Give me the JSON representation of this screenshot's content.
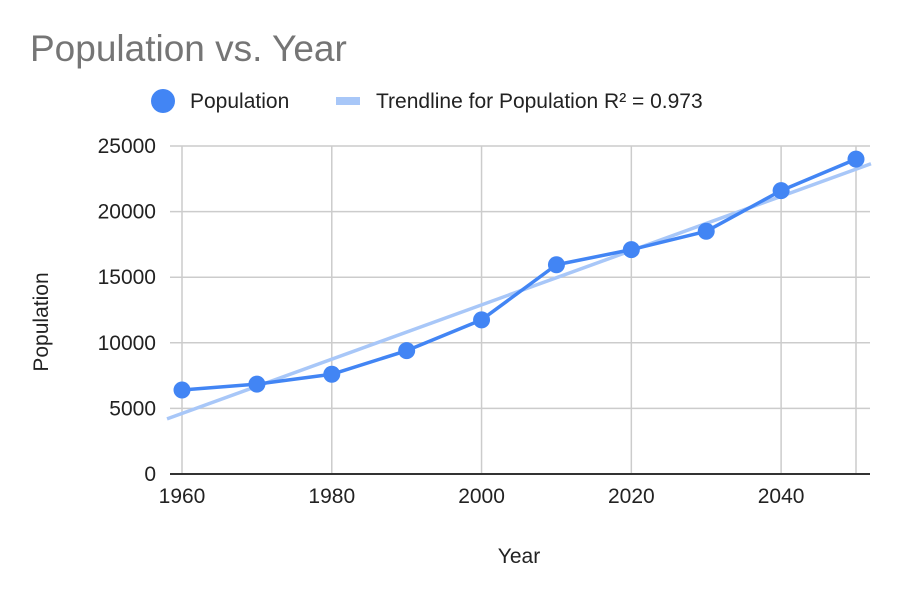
{
  "chart_data": {
    "type": "line",
    "title": "Population vs. Year",
    "xlabel": "Year",
    "ylabel": "Population",
    "xlim": [
      1960,
      2052
    ],
    "ylim": [
      0,
      25000
    ],
    "x_ticks": [
      1960,
      1980,
      2000,
      2020,
      2040
    ],
    "x_gridlines": [
      1960,
      1980,
      2000,
      2020,
      2040,
      2050
    ],
    "y_ticks": [
      0,
      5000,
      10000,
      15000,
      20000,
      25000
    ],
    "grid": true,
    "legend": {
      "position": "top",
      "entries": [
        {
          "label": "Population",
          "marker": "circle"
        },
        {
          "label": "Trendline for Population R² = 0.973",
          "marker": "line"
        }
      ]
    },
    "series": [
      {
        "name": "Population",
        "x": [
          1960,
          1970,
          1980,
          1990,
          2000,
          2010,
          2020,
          2030,
          2040,
          2050
        ],
        "values": [
          6400,
          6850,
          7600,
          9400,
          11750,
          15950,
          17100,
          18500,
          21600,
          24000
        ],
        "color": "#4285f4"
      }
    ],
    "trendline": {
      "name": "Trendline for Population",
      "type": "linear",
      "r_squared": 0.973,
      "x": [
        1958,
        2052
      ],
      "values": [
        4200,
        23650
      ],
      "color": "#a8c7f8"
    }
  },
  "colors": {
    "title": "#757575",
    "text": "#222222",
    "grid": "#cccccc",
    "axis": "#333333"
  }
}
